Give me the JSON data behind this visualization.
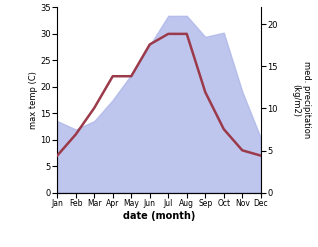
{
  "months": [
    "Jan",
    "Feb",
    "Mar",
    "Apr",
    "May",
    "Jun",
    "Jul",
    "Aug",
    "Sep",
    "Oct",
    "Nov",
    "Dec"
  ],
  "month_positions": [
    0,
    1,
    2,
    3,
    4,
    5,
    6,
    7,
    8,
    9,
    10,
    11
  ],
  "max_temp": [
    7,
    11,
    16,
    22,
    22,
    28,
    30,
    30,
    19,
    12,
    8,
    7
  ],
  "precipitation": [
    8.5,
    7.5,
    8.5,
    11,
    14,
    17.5,
    21,
    21,
    18.5,
    19,
    12,
    6.5
  ],
  "temp_color": "#9b3a4a",
  "precip_color": "#aab4e8",
  "precip_alpha": 0.75,
  "temp_ylim": [
    0,
    35
  ],
  "precip_ylim": [
    0,
    22
  ],
  "temp_yticks": [
    0,
    5,
    10,
    15,
    20,
    25,
    30,
    35
  ],
  "precip_yticks": [
    0,
    5,
    10,
    15,
    20
  ],
  "ylabel_left": "max temp (C)",
  "ylabel_right": "med. precipitation\n(kg/m2)",
  "xlabel": "date (month)",
  "background_color": "#ffffff",
  "linewidth": 1.8,
  "fig_width": 3.18,
  "fig_height": 2.47,
  "dpi": 100
}
